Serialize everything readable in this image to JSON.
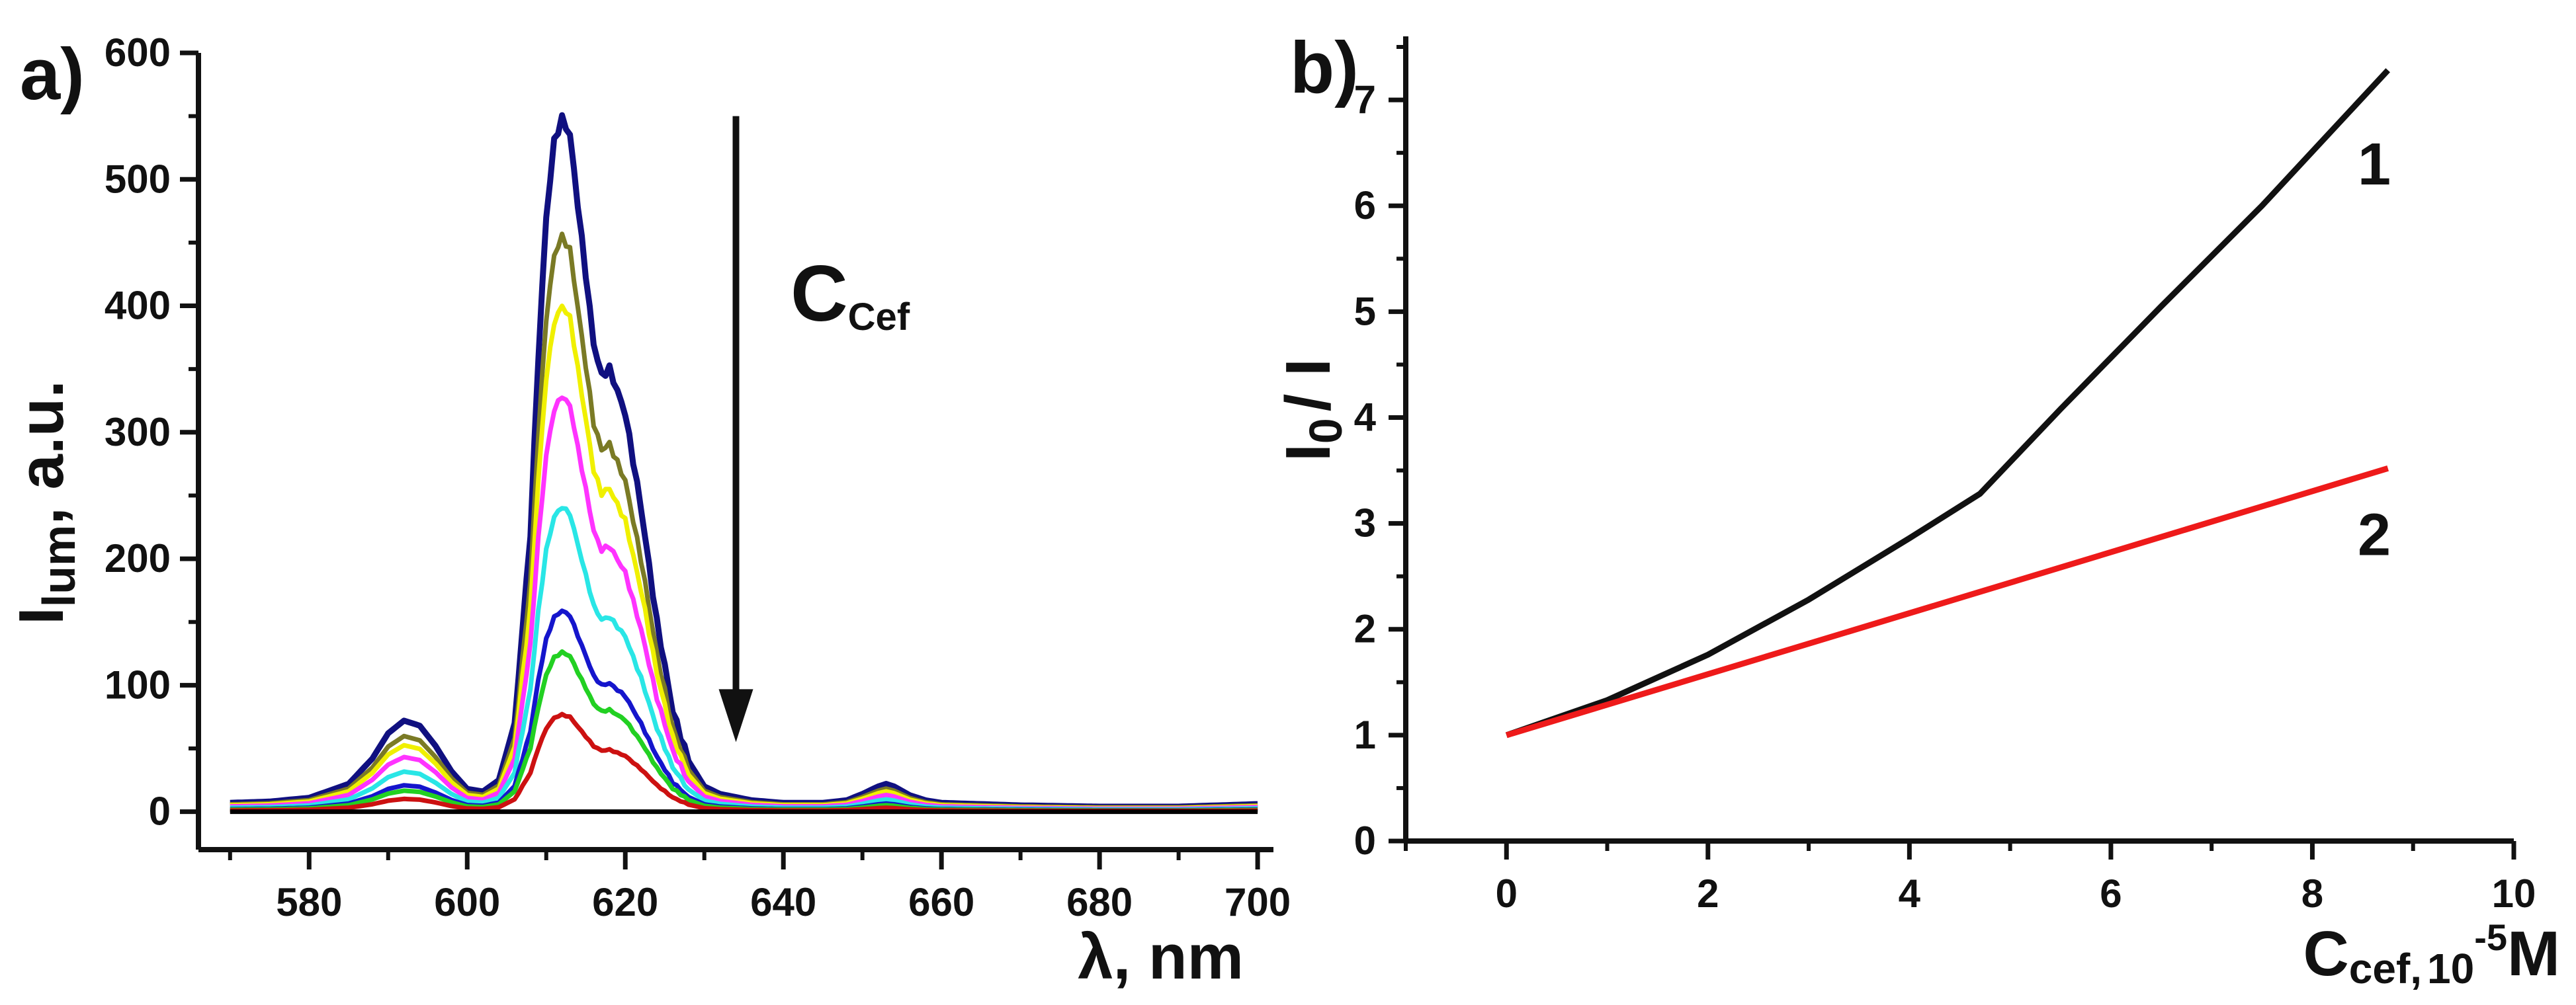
{
  "colors": {
    "axis": "#111111",
    "background": "#ffffff",
    "series": [
      "#cc1111",
      "#22d022",
      "#1515cc",
      "#29e6e6",
      "#ff33ff",
      "#f0f000",
      "#7a7a25",
      "#101080",
      "#000000"
    ],
    "line1": "#111111",
    "line2": "#ee1a1a"
  },
  "chart_data": [
    {
      "type": "line",
      "panel_label": "a)",
      "title": "",
      "ylabel": {
        "main": "I",
        "sub": "lum",
        "suffix": ", a.u."
      },
      "xlabel": "λ, nm",
      "xlim": [
        566,
        702
      ],
      "ylim": [
        -30,
        600
      ],
      "xticks": [
        580,
        600,
        620,
        640,
        660,
        680,
        700
      ],
      "yticks": [
        0,
        100,
        200,
        300,
        400,
        500,
        600
      ],
      "xtick_labels": [
        "580",
        "600",
        "620",
        "640",
        "660",
        "680",
        "700"
      ],
      "ytick_labels": [
        "0",
        "100",
        "200",
        "300",
        "400",
        "500",
        "600"
      ],
      "annotation": {
        "text_main": "C",
        "text_sub": "Cef",
        "arrow_x": 634,
        "arrow_y_from": 550,
        "arrow_y_to": 55,
        "note": "arrow points downward: intensity decreases as C_Cef increases"
      },
      "series_scale_factors": [
        0.0,
        0.14,
        0.23,
        0.29,
        0.44,
        0.6,
        0.73,
        0.83,
        1.0
      ],
      "series": [
        {
          "name": "highest C_Cef (baseline)",
          "color": "#000000",
          "x": [
            570,
            600,
            630,
            660,
            700
          ],
          "y": [
            0,
            0,
            0,
            0,
            0
          ]
        },
        {
          "name": "red",
          "color": "#cc1111"
        },
        {
          "name": "green",
          "color": "#22d022"
        },
        {
          "name": "blue",
          "color": "#1515cc"
        },
        {
          "name": "cyan",
          "color": "#29e6e6"
        },
        {
          "name": "magenta",
          "color": "#ff33ff"
        },
        {
          "name": "yellow",
          "color": "#f0f000"
        },
        {
          "name": "olive",
          "color": "#7a7a25"
        },
        {
          "name": "navy (C_Cef = 0)",
          "color": "#101080"
        }
      ],
      "reference_spectrum": {
        "x": [
          570,
          575,
          580,
          585,
          588,
          590,
          592,
          594,
          596,
          598,
          600,
          602,
          604,
          606,
          608,
          609,
          610,
          611,
          612,
          613,
          614,
          616,
          617,
          618,
          620,
          622,
          624,
          626,
          628,
          630,
          632,
          636,
          640,
          645,
          648,
          650,
          652,
          653,
          654,
          656,
          658,
          660,
          665,
          670,
          680,
          690,
          700
        ],
        "y": [
          7,
          8,
          11,
          22,
          42,
          62,
          72,
          68,
          52,
          32,
          18,
          16,
          25,
          70,
          220,
          360,
          470,
          530,
          548,
          535,
          480,
          370,
          345,
          350,
          315,
          240,
          150,
          80,
          40,
          20,
          14,
          9,
          7,
          7,
          9,
          14,
          20,
          22,
          20,
          13,
          9,
          7,
          6,
          5,
          4,
          4,
          6
        ]
      }
    },
    {
      "type": "line",
      "panel_label": "b)",
      "title": "",
      "ylabel": {
        "main": "I",
        "sub": "0",
        "suffix": "/ I"
      },
      "xlabel": {
        "main": "C",
        "sub": "cef,",
        "unit": "10",
        "sup": "-5",
        "tail": "M"
      },
      "xlim": [
        -1.0,
        10.0
      ],
      "ylim": [
        0,
        7.6
      ],
      "xticks": [
        0,
        2,
        4,
        6,
        8,
        10
      ],
      "yticks": [
        0,
        1,
        2,
        3,
        4,
        5,
        6,
        7
      ],
      "xtick_labels": [
        "0",
        "2",
        "4",
        "6",
        "8",
        "10"
      ],
      "ytick_labels": [
        "0",
        "1",
        "2",
        "3",
        "4",
        "5",
        "6",
        "7"
      ],
      "series": [
        {
          "name": "1",
          "color": "#111111",
          "x": [
            0,
            1,
            2,
            3,
            4,
            4.7,
            5.5,
            6.5,
            7.5,
            8.75
          ],
          "y": [
            1.0,
            1.33,
            1.76,
            2.28,
            2.86,
            3.28,
            4.08,
            5.05,
            6.0,
            7.28
          ],
          "label_at": [
            8.45,
            6.2
          ]
        },
        {
          "name": "2",
          "color": "#ee1a1a",
          "x": [
            0,
            8.75
          ],
          "y": [
            1.0,
            3.52
          ],
          "label_at": [
            8.45,
            2.7
          ]
        }
      ]
    }
  ]
}
